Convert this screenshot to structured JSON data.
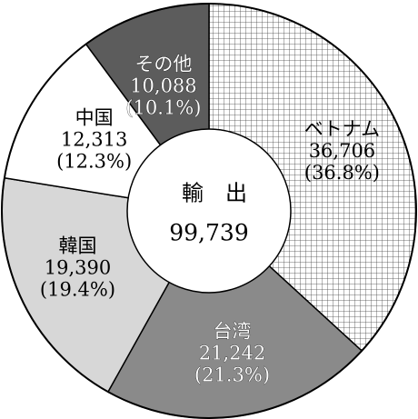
{
  "chart_data": {
    "type": "pie",
    "style": "donut",
    "center_title": "輸　出",
    "center_value": "99,739",
    "start_angle_deg": 0,
    "direction": "clockwise",
    "slices": [
      {
        "name": "ベトナム",
        "value": 36706,
        "value_label": "36,706",
        "percent_label": "(36.8%)",
        "fill": "#ffffff",
        "pattern": "grid",
        "text_color": "#000000"
      },
      {
        "name": "台湾",
        "value": 21242,
        "value_label": "21,242",
        "percent_label": "(21.3%)",
        "fill": "#8a8a8a",
        "pattern": "none",
        "text_color": "#ffffff"
      },
      {
        "name": "韓国",
        "value": 19390,
        "value_label": "19,390",
        "percent_label": "(19.4%)",
        "fill": "#d7d7d7",
        "pattern": "none",
        "text_color": "#000000"
      },
      {
        "name": "中国",
        "value": 12313,
        "value_label": "12,313",
        "percent_label": "(12.3%)",
        "fill": "#ffffff",
        "pattern": "none",
        "text_color": "#000000"
      },
      {
        "name": "その他",
        "value": 10088,
        "value_label": "10,088",
        "percent_label": "(10.1%)",
        "fill": "#5c5c5c",
        "pattern": "none",
        "text_color": "#ffffff"
      }
    ]
  }
}
